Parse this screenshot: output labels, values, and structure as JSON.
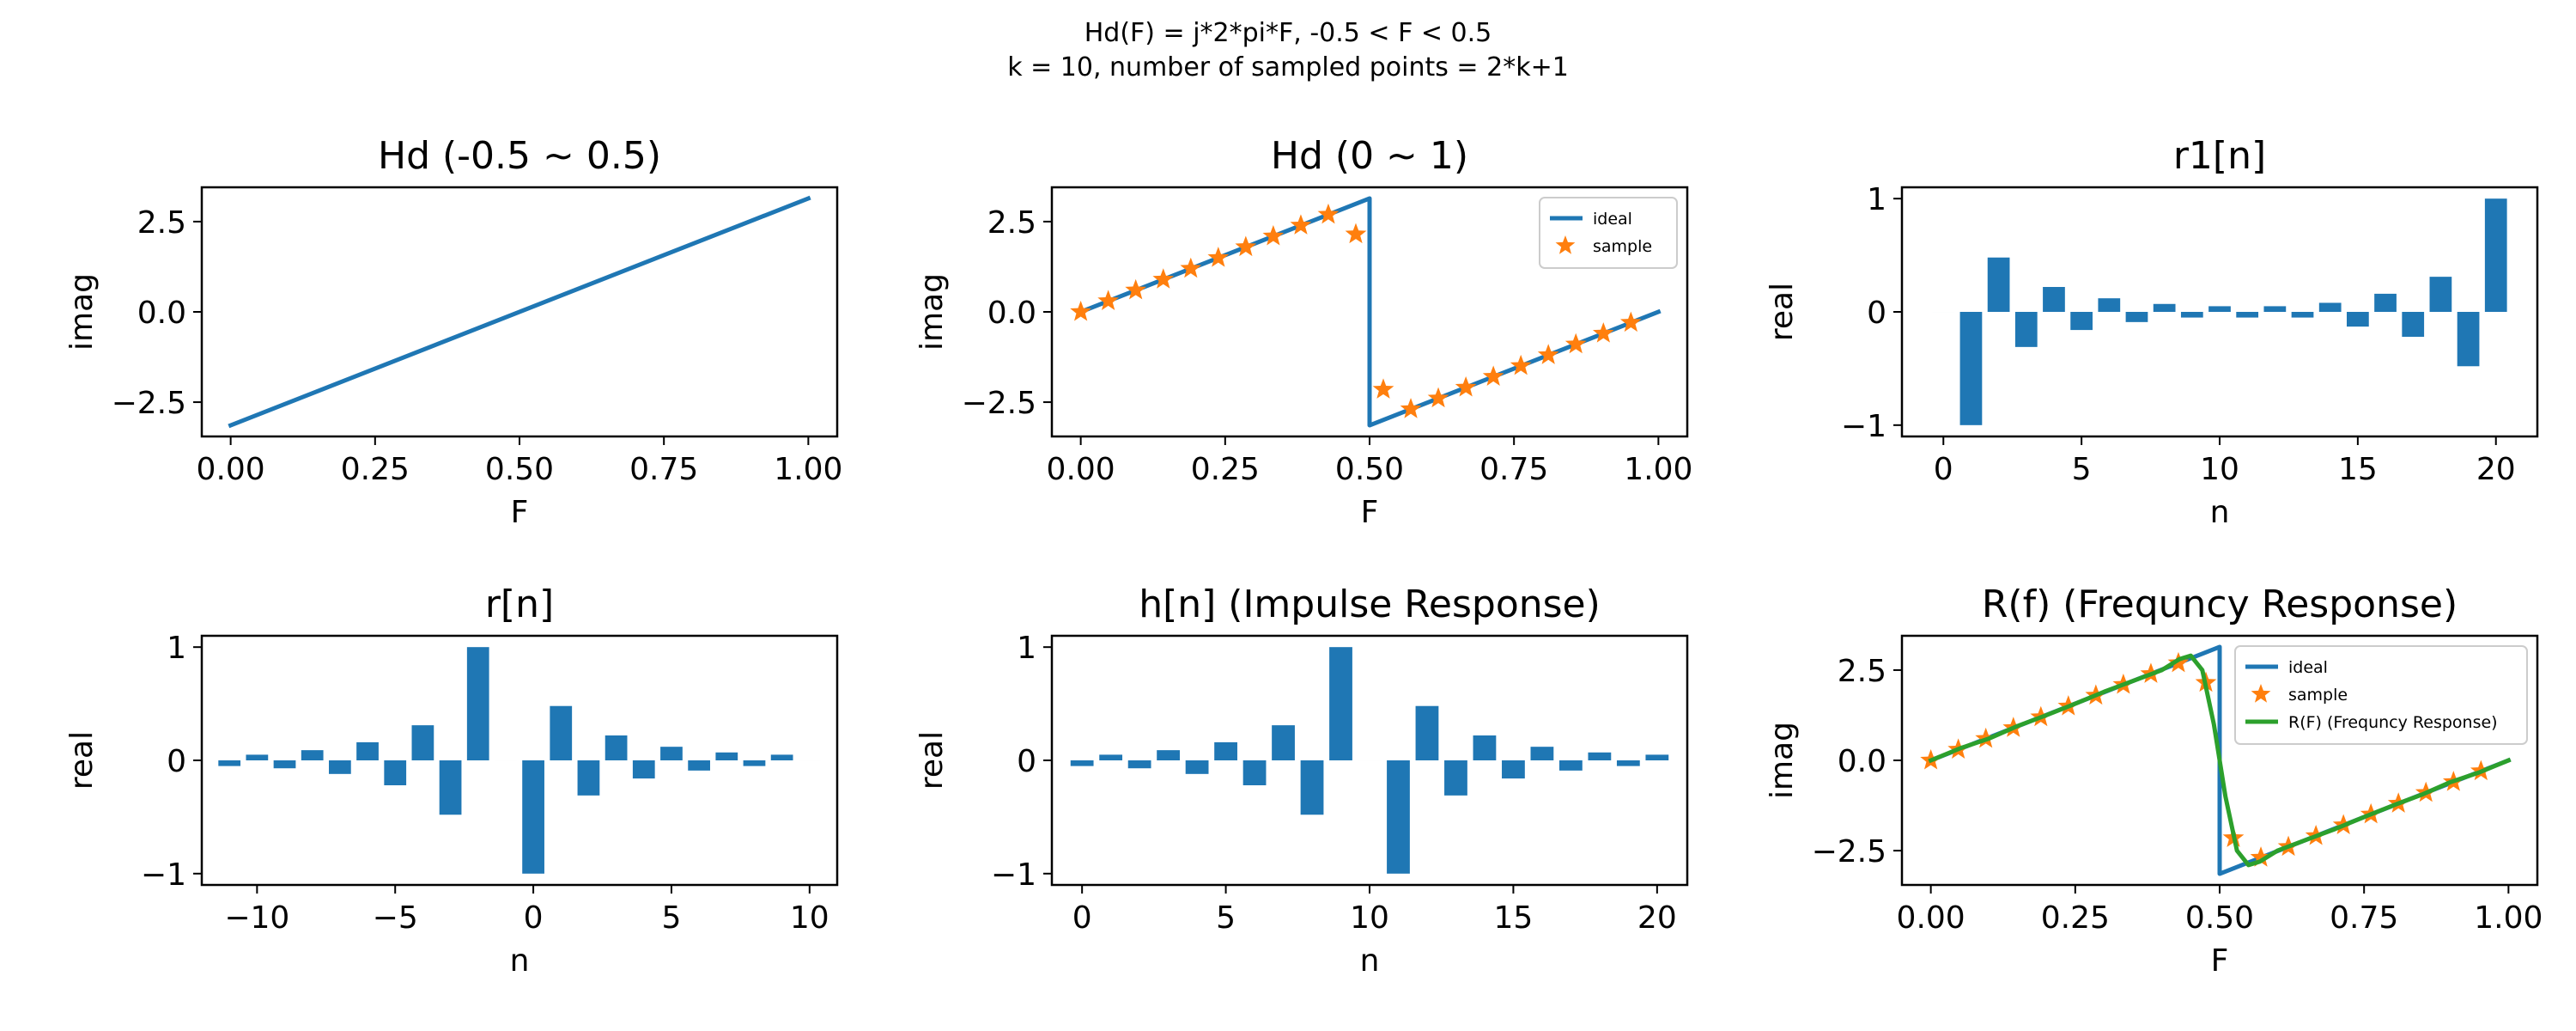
{
  "figure": {
    "suptitle_line1": "Hd(F) = j*2*pi*F, -0.5 < F < 0.5",
    "suptitle_line2": "k = 10, number of sampled points = 2*k+1"
  },
  "colors": {
    "ideal": "#1f77b4",
    "sample": "#ff7f0e",
    "response": "#2ca02c",
    "bar": "#1f77b4"
  },
  "chart_data": [
    {
      "id": "hd_centered",
      "type": "line",
      "title": "Hd (-0.5 ~ 0.5)",
      "xlabel": "F",
      "ylabel": "imag",
      "xlim": [
        -0.05,
        1.05
      ],
      "ylim": [
        -3.45,
        3.45
      ],
      "xticks": [
        0,
        0.25,
        0.5,
        0.75,
        1.0
      ],
      "xticklabels": [
        "0.00",
        "0.25",
        "0.50",
        "0.75",
        "1.00"
      ],
      "yticks": [
        -2.5,
        0,
        2.5
      ],
      "yticklabels": [
        "−2.5",
        "0.0",
        "2.5"
      ],
      "series": [
        {
          "kind": "line",
          "color": "ideal",
          "x": [
            0,
            1
          ],
          "y": [
            -3.1416,
            3.1416
          ]
        }
      ]
    },
    {
      "id": "hd_shifted",
      "type": "line",
      "title": "Hd (0 ~ 1)",
      "xlabel": "F",
      "ylabel": "imag",
      "xlim": [
        -0.05,
        1.05
      ],
      "ylim": [
        -3.45,
        3.45
      ],
      "xticks": [
        0,
        0.25,
        0.5,
        0.75,
        1.0
      ],
      "xticklabels": [
        "0.00",
        "0.25",
        "0.50",
        "0.75",
        "1.00"
      ],
      "yticks": [
        -2.5,
        0,
        2.5
      ],
      "yticklabels": [
        "−2.5",
        "0.0",
        "2.5"
      ],
      "legend": {
        "position": "upper right",
        "entries": [
          "ideal",
          "sample"
        ]
      },
      "series": [
        {
          "kind": "line",
          "name": "ideal",
          "color": "ideal",
          "x": [
            0,
            0.5,
            0.5,
            1.0
          ],
          "y": [
            0,
            3.1416,
            -3.1416,
            0
          ]
        },
        {
          "kind": "stars",
          "name": "sample",
          "color": "sample",
          "x": [
            0,
            0.0476,
            0.0952,
            0.1429,
            0.1905,
            0.2381,
            0.2857,
            0.3333,
            0.381,
            0.4286,
            0.4762,
            0.5238,
            0.5714,
            0.619,
            0.6667,
            0.7143,
            0.7619,
            0.8095,
            0.8571,
            0.9048,
            0.9524
          ],
          "y": [
            0,
            0.299,
            0.598,
            0.898,
            1.197,
            1.496,
            1.795,
            2.094,
            2.394,
            2.693,
            2.15,
            -2.15,
            -2.693,
            -2.394,
            -2.094,
            -1.795,
            -1.496,
            -1.197,
            -0.898,
            -0.598,
            -0.299
          ]
        }
      ]
    },
    {
      "id": "r1",
      "type": "bar",
      "title": "r1[n]",
      "xlabel": "n",
      "ylabel": "real",
      "xlim": [
        -1.5,
        21.5
      ],
      "ylim": [
        -1.1,
        1.1
      ],
      "xticks": [
        0,
        5,
        10,
        15,
        20
      ],
      "xticklabels": [
        "0",
        "5",
        "10",
        "15",
        "20"
      ],
      "yticks": [
        -1,
        0,
        1
      ],
      "yticklabels": [
        "−1",
        "0",
        "1"
      ],
      "bar_width": 0.8,
      "x": [
        0,
        1,
        2,
        3,
        4,
        5,
        6,
        7,
        8,
        9,
        10,
        11,
        12,
        13,
        14,
        15,
        16,
        17,
        18,
        19,
        20
      ],
      "values": [
        0,
        -1.0,
        0.48,
        -0.31,
        0.22,
        -0.16,
        0.12,
        -0.09,
        0.07,
        -0.05,
        0.05,
        -0.05,
        0.05,
        -0.05,
        0.08,
        -0.13,
        0.16,
        -0.22,
        0.31,
        -0.48,
        1.0
      ]
    },
    {
      "id": "r",
      "type": "bar",
      "title": "r[n]",
      "xlabel": "n",
      "ylabel": "real",
      "xlim": [
        -12,
        11
      ],
      "ylim": [
        -1.1,
        1.1
      ],
      "xticks": [
        -10,
        -5,
        0,
        5,
        10
      ],
      "xticklabels": [
        "−10",
        "−5",
        "0",
        "5",
        "10"
      ],
      "yticks": [
        -1,
        0,
        1
      ],
      "yticklabels": [
        "−1",
        "0",
        "1"
      ],
      "bar_width": 0.8,
      "x": [
        -11,
        -10,
        -9,
        -8,
        -7,
        -6,
        -5,
        -4,
        -3,
        -2,
        -1,
        0,
        1,
        2,
        3,
        4,
        5,
        6,
        7,
        8,
        9,
        10
      ],
      "values": [
        -0.05,
        0.05,
        -0.07,
        0.09,
        -0.12,
        0.16,
        -0.22,
        0.31,
        -0.48,
        1.0,
        0,
        -1.0,
        0.48,
        -0.31,
        0.22,
        -0.16,
        0.12,
        -0.09,
        0.07,
        -0.05,
        0.05,
        0
      ]
    },
    {
      "id": "h",
      "type": "bar",
      "title": "h[n] (Impulse Response)",
      "xlabel": "n",
      "ylabel": "real",
      "xlim": [
        -1.05,
        21.05
      ],
      "ylim": [
        -1.1,
        1.1
      ],
      "xticks": [
        0,
        5,
        10,
        15,
        20
      ],
      "xticklabels": [
        "0",
        "5",
        "10",
        "15",
        "20"
      ],
      "yticks": [
        -1,
        0,
        1
      ],
      "yticklabels": [
        "−1",
        "0",
        "1"
      ],
      "bar_width": 0.8,
      "x": [
        0,
        1,
        2,
        3,
        4,
        5,
        6,
        7,
        8,
        9,
        10,
        11,
        12,
        13,
        14,
        15,
        16,
        17,
        18,
        19,
        20
      ],
      "values": [
        -0.05,
        0.05,
        -0.07,
        0.09,
        -0.12,
        0.16,
        -0.22,
        0.31,
        -0.48,
        1.0,
        0,
        -1.0,
        0.48,
        -0.31,
        0.22,
        -0.16,
        0.12,
        -0.09,
        0.07,
        -0.05,
        0.05
      ]
    },
    {
      "id": "rf",
      "type": "line",
      "title": "R(f) (Frequncy Response)",
      "xlabel": "F",
      "ylabel": "imag",
      "xlim": [
        -0.05,
        1.05
      ],
      "ylim": [
        -3.45,
        3.45
      ],
      "xticks": [
        0,
        0.25,
        0.5,
        0.75,
        1.0
      ],
      "xticklabels": [
        "0.00",
        "0.25",
        "0.50",
        "0.75",
        "1.00"
      ],
      "yticks": [
        -2.5,
        0,
        2.5
      ],
      "yticklabels": [
        "−2.5",
        "0.0",
        "2.5"
      ],
      "legend": {
        "position": "upper right",
        "entries": [
          "ideal",
          "sample",
          "R(F) (Frequncy Response)"
        ]
      },
      "series": [
        {
          "kind": "line",
          "name": "ideal",
          "color": "ideal",
          "x": [
            0,
            0.5,
            0.5,
            1.0
          ],
          "y": [
            0,
            3.1416,
            -3.1416,
            0
          ]
        },
        {
          "kind": "stars",
          "name": "sample",
          "color": "sample",
          "x": [
            0,
            0.0476,
            0.0952,
            0.1429,
            0.1905,
            0.2381,
            0.2857,
            0.3333,
            0.381,
            0.4286,
            0.4762,
            0.5238,
            0.5714,
            0.619,
            0.6667,
            0.7143,
            0.7619,
            0.8095,
            0.8571,
            0.9048,
            0.9524
          ],
          "y": [
            0,
            0.299,
            0.598,
            0.898,
            1.197,
            1.496,
            1.795,
            2.094,
            2.394,
            2.693,
            2.15,
            -2.15,
            -2.693,
            -2.394,
            -2.094,
            -1.795,
            -1.496,
            -1.197,
            -0.898,
            -0.598,
            -0.299
          ]
        },
        {
          "kind": "line",
          "name": "R(F) (Frequncy Response)",
          "color": "response",
          "x": [
            0,
            0.05,
            0.1,
            0.15,
            0.2,
            0.25,
            0.3,
            0.35,
            0.4,
            0.43,
            0.45,
            0.47,
            0.49,
            0.5,
            0.51,
            0.53,
            0.55,
            0.57,
            0.6,
            0.65,
            0.7,
            0.75,
            0.8,
            0.85,
            0.9,
            0.95,
            1.0
          ],
          "y": [
            0,
            0.33,
            0.6,
            0.95,
            1.25,
            1.57,
            1.9,
            2.2,
            2.5,
            2.8,
            2.9,
            2.5,
            1.0,
            0,
            -1.0,
            -2.5,
            -2.9,
            -2.8,
            -2.5,
            -2.2,
            -1.9,
            -1.57,
            -1.25,
            -0.95,
            -0.6,
            -0.33,
            0
          ]
        }
      ]
    }
  ]
}
